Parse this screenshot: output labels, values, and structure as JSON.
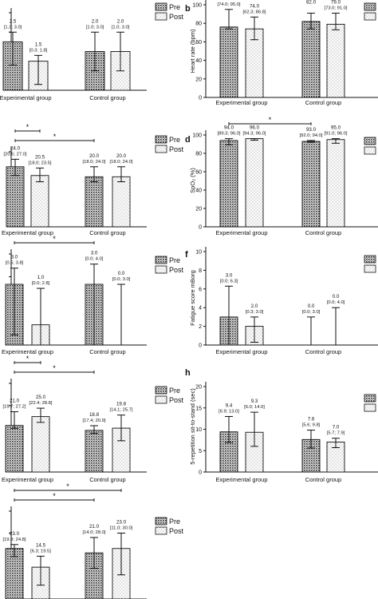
{
  "legend_pre_label": "Pre",
  "legend_post_label": "Post",
  "group_labels": [
    "Experimental group",
    "Control group"
  ],
  "colors": {
    "bar_fill": "#f4f4f4",
    "stroke": "#111111",
    "background": "#ffffff"
  },
  "chart_data": [
    {
      "id": "a",
      "panel_letter": "",
      "type": "bar",
      "categories": [
        "Experimental group",
        "Control group"
      ],
      "series": [
        {
          "name": "Pre",
          "values": [
            2.5,
            2.0
          ],
          "err": [
            [
              1.3,
              3.0
            ],
            [
              1.0,
              3.0
            ]
          ],
          "labels": [
            "2.5",
            "2.0"
          ],
          "ci_labels": [
            "[1.3; 3.0]",
            "[1.0; 3.0]"
          ]
        },
        {
          "name": "Post",
          "values": [
            1.5,
            2.0
          ],
          "err": [
            [
              0.3,
              1.8
            ],
            [
              1.0,
              3.0
            ]
          ],
          "labels": [
            "1.5",
            "2.0"
          ],
          "ci_labels": [
            "[0.3; 1.8]",
            "[1.0; 3.0]"
          ]
        }
      ],
      "ylabel": "",
      "ylim": [
        0,
        4
      ],
      "yticks": [],
      "legend": "top-right",
      "grid": false,
      "significance": []
    },
    {
      "id": "b",
      "panel_letter": "b",
      "type": "bar",
      "categories": [
        "Experimental group",
        "Control group"
      ],
      "series": [
        {
          "name": "",
          "values": [
            76.0,
            82.0
          ],
          "err": [
            [
              74.0,
              95.0
            ],
            [
              74.0,
              91.0
            ]
          ],
          "labels": [
            "",
            "82.0"
          ],
          "ci_labels": [
            "[74.0; 95.0]",
            ""
          ]
        },
        {
          "name": "",
          "values": [
            74.0,
            79.0
          ],
          "err": [
            [
              62.3,
              86.8
            ],
            [
              73.0,
              91.0
            ]
          ],
          "labels": [
            "74.0",
            "79.0"
          ],
          "ci_labels": [
            "[62.3; 86.8]",
            "[73.0; 91.0]"
          ]
        }
      ],
      "ylabel": "Heart rate (bpm)",
      "ylim": [
        0,
        100
      ],
      "yticks": [
        0,
        20,
        40,
        60,
        80,
        100
      ],
      "legend": "top-right",
      "grid": false,
      "significance": []
    },
    {
      "id": "c",
      "panel_letter": "",
      "type": "bar",
      "categories": [
        "Experimental group",
        "Control group"
      ],
      "series": [
        {
          "name": "Pre",
          "values": [
            24.0,
            20.0
          ],
          "err": [
            [
              20.5,
              27.0
            ],
            [
              18.0,
              24.0
            ]
          ],
          "labels": [
            "24.0",
            "20.0"
          ],
          "ci_labels": [
            "[20.5; 27.0]",
            "[18.0; 24.0]"
          ]
        },
        {
          "name": "Post",
          "values": [
            20.5,
            20.0
          ],
          "err": [
            [
              18.0,
              23.5
            ],
            [
              18.0,
              24.0
            ]
          ],
          "labels": [
            "20.5",
            "20.0"
          ],
          "ci_labels": [
            "[18.0; 23.5]",
            "[18.0; 24.0]"
          ]
        }
      ],
      "ylabel": "",
      "ylim": [
        0,
        30
      ],
      "yticks": [],
      "legend": "top-right",
      "grid": false,
      "significance": [
        {
          "from": [
            0,
            0
          ],
          "to": [
            0,
            1
          ],
          "label": "*"
        },
        {
          "from": [
            0,
            0
          ],
          "to": [
            1,
            0
          ],
          "label": "*"
        }
      ]
    },
    {
      "id": "d",
      "panel_letter": "d",
      "type": "bar",
      "categories": [
        "Experimental group",
        "Control group"
      ],
      "series": [
        {
          "name": "",
          "values": [
            94.0,
            93.0
          ],
          "err": [
            [
              89.3,
              96.0
            ],
            [
              92.0,
              94.0
            ]
          ],
          "labels": [
            "94.0",
            "93.0"
          ],
          "ci_labels": [
            "[89.3; 96.0]",
            "[92.0; 94.0]"
          ]
        },
        {
          "name": "",
          "values": [
            96.0,
            95.0
          ],
          "err": [
            [
              94.3,
              96.0
            ],
            [
              91.0,
              96.0
            ]
          ],
          "labels": [
            "96.0",
            "95.0"
          ],
          "ci_labels": [
            "[94.3; 96.0]",
            "[91.0; 96.0]"
          ]
        }
      ],
      "ylabel": "SpO₂ (%)",
      "ylim": [
        0,
        100
      ],
      "yticks": [
        0,
        20,
        40,
        60,
        80,
        100
      ],
      "legend": "top-right",
      "grid": false,
      "significance": [
        {
          "from": [
            0,
            0
          ],
          "to": [
            0,
            1
          ],
          "label": "*"
        }
      ]
    },
    {
      "id": "e",
      "panel_letter": "",
      "type": "bar",
      "categories": [
        "Experimental group",
        "Control group"
      ],
      "series": [
        {
          "name": "",
          "values": [
            3.0,
            3.0
          ],
          "err": [
            [
              0.5,
              3.8
            ],
            [
              0.0,
              4.0
            ]
          ],
          "labels": [
            "3.0",
            "3.0"
          ],
          "ci_labels": [
            "[0.5; 3.8]",
            "[0.0; 4.0]"
          ]
        },
        {
          "name": "",
          "values": [
            1.0,
            0.0
          ],
          "err": [
            [
              0.0,
              2.8
            ],
            [
              0.0,
              3.0
            ]
          ],
          "labels": [
            "1.0",
            "0.0"
          ],
          "ci_labels": [
            "[0.0; 2.8]",
            "[0.0; 3.0]"
          ]
        }
      ],
      "ylabel": "",
      "ylim": [
        0,
        4.5
      ],
      "yticks": [],
      "legend": "top-right",
      "grid": false,
      "significance": [
        {
          "from": [
            0,
            0
          ],
          "to": [
            0,
            1
          ],
          "label": "*"
        }
      ]
    },
    {
      "id": "f",
      "panel_letter": "f",
      "type": "bar",
      "categories": [
        "Experimental group",
        "Control group"
      ],
      "series": [
        {
          "name": "",
          "values": [
            3.0,
            0.0
          ],
          "err": [
            [
              0.0,
              6.3
            ],
            [
              0.0,
              3.0
            ]
          ],
          "labels": [
            "3.0",
            "0.0"
          ],
          "ci_labels": [
            "[0.0; 6.3]",
            "[0.0; 3.0]"
          ]
        },
        {
          "name": "",
          "values": [
            2.0,
            0.0
          ],
          "err": [
            [
              0.3,
              3.0
            ],
            [
              0.0,
              4.0
            ]
          ],
          "labels": [
            "2.0",
            "0.0"
          ],
          "ci_labels": [
            "[0.3; 3.0]",
            "[0.0; 4.0]"
          ]
        }
      ],
      "ylabel": "Fatigue score mBorg",
      "ylim": [
        0,
        10
      ],
      "yticks": [
        0,
        2,
        4,
        6,
        8,
        10
      ],
      "legend": "top-right",
      "grid": false,
      "significance": []
    },
    {
      "id": "g",
      "panel_letter": "",
      "type": "bar",
      "categories": [
        "Experimental group",
        "Control group"
      ],
      "series": [
        {
          "name": "Pre",
          "values": [
            21.0,
            18.8
          ],
          "err": [
            [
              19.7,
              27.2
            ],
            [
              17.4,
              20.9
            ]
          ],
          "labels": [
            "21.0",
            "18.8"
          ],
          "ci_labels": [
            "[19.7; 27.2]",
            "[17.4; 20.9]"
          ]
        },
        {
          "name": "Post",
          "values": [
            25.0,
            19.8
          ],
          "err": [
            [
              22.4,
              28.8
            ],
            [
              14.1,
              25.7
            ]
          ],
          "labels": [
            "25.0",
            "19.8"
          ],
          "ci_labels": [
            "[22.4; 28.8]",
            "[14.1; 25.7]"
          ]
        }
      ],
      "ylabel": "",
      "ylim": [
        0,
        40
      ],
      "yticks": [],
      "legend": "top-right",
      "grid": false,
      "significance": [
        {
          "from": [
            0,
            0
          ],
          "to": [
            0,
            1
          ],
          "label": "*"
        },
        {
          "from": [
            0,
            0
          ],
          "to": [
            1,
            0
          ],
          "label": "*"
        }
      ]
    },
    {
      "id": "h",
      "panel_letter": "h",
      "type": "bar",
      "categories": [
        "Experimental group",
        "Control group"
      ],
      "series": [
        {
          "name": "",
          "values": [
            9.4,
            7.6
          ],
          "err": [
            [
              6.9,
              13.0
            ],
            [
              5.6,
              9.8
            ]
          ],
          "labels": [
            "9.4",
            "7.6"
          ],
          "ci_labels": [
            "[6.9; 13.0]",
            "[5.6; 9.8]"
          ]
        },
        {
          "name": "",
          "values": [
            9.3,
            7.0
          ],
          "err": [
            [
              6.0,
              14.0
            ],
            [
              5.7,
              7.9
            ]
          ],
          "labels": [
            "9.3",
            "7.0"
          ],
          "ci_labels": [
            "[6.0; 14.0]",
            "[5.7; 7.9]"
          ]
        }
      ],
      "ylabel": "5-repetition sit-to-stand (sec)",
      "ylim": [
        0,
        20
      ],
      "yticks": [
        0,
        5,
        10,
        15,
        20
      ],
      "legend": "top-right",
      "grid": false,
      "significance": []
    },
    {
      "id": "i",
      "panel_letter": "",
      "type": "bar",
      "categories": [
        "Experimental group",
        "Control group"
      ],
      "series": [
        {
          "name": "Pre",
          "values": [
            23.0,
            21.0
          ],
          "err": [
            [
              19.3,
              24.8
            ],
            [
              14.0,
              28.0
            ]
          ],
          "labels": [
            "23.0",
            "21.0"
          ],
          "ci_labels": [
            "[19.3; 24.8]",
            "[14.0; 28.0]"
          ]
        },
        {
          "name": "Post",
          "values": [
            14.5,
            23.0
          ],
          "err": [
            [
              6.3,
              19.5
            ],
            [
              11.0,
              30.0
            ]
          ],
          "labels": [
            "14.5",
            "23.0"
          ],
          "ci_labels": [
            "[6.3; 19.5]",
            "[11.0; 30.0]"
          ]
        }
      ],
      "ylabel": "",
      "ylim": [
        0,
        40
      ],
      "yticks": [],
      "legend": "top-right",
      "grid": false,
      "significance": [
        {
          "from": [
            0,
            0
          ],
          "to": [
            0,
            1
          ],
          "label": "*"
        },
        {
          "from": [
            0,
            0
          ],
          "to": [
            1,
            1
          ],
          "label": "*"
        }
      ]
    }
  ]
}
